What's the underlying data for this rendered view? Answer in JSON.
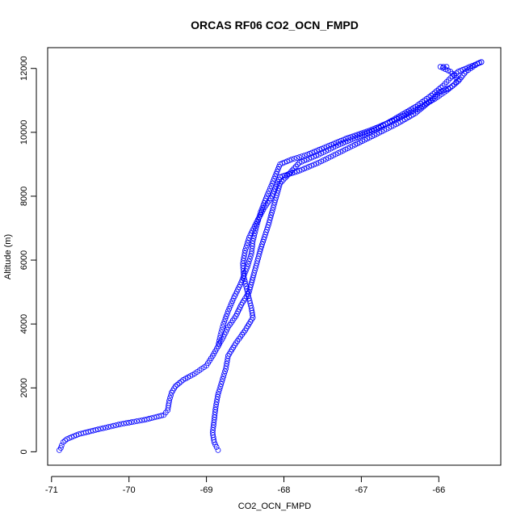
{
  "chart_data": {
    "type": "scatter",
    "title": "ORCAS RF06 CO2_OCN_FMPD",
    "xlabel": "CO2_OCN_FMPD",
    "ylabel": "Altitude (m)",
    "xlim": [
      -71.05,
      -65.2
    ],
    "ylim": [
      -420,
      12650
    ],
    "x_ticks": [
      -71,
      -70,
      -69,
      -68,
      -67,
      -66
    ],
    "y_ticks": [
      0,
      2000,
      4000,
      6000,
      8000,
      10000,
      12000
    ],
    "marker": "open-circle",
    "color": "#0000ff",
    "grid": false,
    "series": [
      {
        "x": [
          -70.9,
          -70.88,
          -70.87,
          -70.85,
          -70.8,
          -70.65,
          -70.4,
          -70.1,
          -69.8,
          -69.55,
          -69.5,
          -69.48,
          -69.45,
          -69.4,
          -69.3,
          -69.15,
          -69.0,
          -68.92,
          -68.85,
          -68.78,
          -68.72,
          -68.62,
          -68.55,
          -68.45,
          -68.4,
          -68.35,
          -68.3,
          -68.2,
          -68.12,
          -68.05,
          -67.8,
          -67.55,
          -67.3,
          -67.05,
          -66.8,
          -66.55,
          -66.3,
          -66.1,
          -65.95,
          -65.85,
          -65.75,
          -65.6,
          -65.5,
          -65.45
        ],
        "y": [
          50,
          120,
          200,
          300,
          400,
          550,
          700,
          870,
          1000,
          1150,
          1300,
          1600,
          1850,
          2050,
          2250,
          2450,
          2700,
          3000,
          3300,
          3600,
          3900,
          4250,
          4600,
          5000,
          5450,
          5900,
          6350,
          7100,
          7800,
          8400,
          9050,
          9300,
          9600,
          9850,
          10100,
          10450,
          10800,
          11150,
          11450,
          11700,
          11900,
          12050,
          12150,
          12200
        ]
      },
      {
        "x": [
          -65.45,
          -65.5,
          -65.65,
          -65.75,
          -65.85,
          -66.0,
          -66.1,
          -66.3,
          -66.55,
          -66.8,
          -67.05,
          -67.3,
          -67.55,
          -67.8,
          -68.05,
          -68.1,
          -68.15,
          -68.25,
          -68.35,
          -68.45,
          -68.5,
          -68.53,
          -68.52,
          -68.48,
          -68.45,
          -68.42,
          -68.4,
          -68.5,
          -68.62,
          -68.72,
          -68.75,
          -68.8,
          -68.85,
          -68.88,
          -68.9,
          -68.92,
          -68.9,
          -68.87,
          -68.85
        ],
        "y": [
          12200,
          12150,
          11900,
          11600,
          11400,
          11250,
          11000,
          10600,
          10250,
          9950,
          9650,
          9350,
          9050,
          8800,
          8600,
          8300,
          8000,
          7650,
          7200,
          6700,
          6300,
          5900,
          5500,
          5100,
          4800,
          4500,
          4200,
          3800,
          3400,
          3000,
          2600,
          2200,
          1800,
          1400,
          1000,
          600,
          300,
          150,
          50
        ]
      },
      {
        "x": [
          -68.85,
          -68.82,
          -68.78,
          -68.72,
          -68.65,
          -68.55,
          -68.47,
          -68.42,
          -68.4,
          -68.36,
          -68.3,
          -68.22,
          -68.15,
          -68.1,
          -68.05,
          -67.9,
          -67.7,
          -67.45,
          -67.2,
          -66.9,
          -66.6,
          -66.3,
          -66.05,
          -65.9,
          -65.8,
          -65.75,
          -65.85,
          -65.98,
          -65.9
        ],
        "y": [
          3300,
          3650,
          4000,
          4400,
          4800,
          5300,
          5800,
          6200,
          6600,
          7000,
          7500,
          8000,
          8400,
          8700,
          9000,
          9150,
          9300,
          9550,
          9800,
          10050,
          10350,
          10700,
          11050,
          11300,
          11500,
          11650,
          11900,
          12050,
          12050
        ]
      }
    ]
  }
}
